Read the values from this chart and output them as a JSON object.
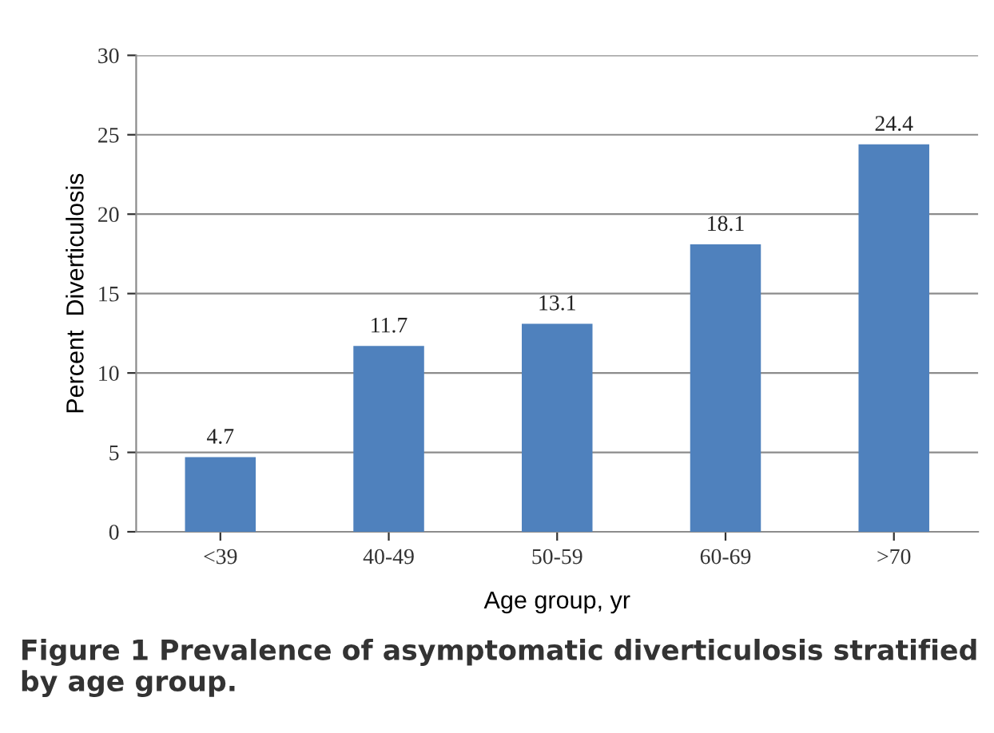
{
  "chart_data": {
    "type": "bar",
    "title": "Figure 1 Prevalence of asymptomatic diverticulosis stratified by age group.",
    "xlabel": "Age group, yr",
    "ylabel": "Percent  Diverticulosis",
    "categories": [
      "<39",
      "40-49",
      "50-59",
      "60-69",
      ">70"
    ],
    "values": [
      4.7,
      11.7,
      13.1,
      18.1,
      24.4
    ],
    "color": "#4f81bd",
    "ylim": [
      0,
      30
    ],
    "yticks": [
      0,
      5,
      10,
      15,
      20,
      25,
      30
    ],
    "grid": "y",
    "data_labels": true
  }
}
